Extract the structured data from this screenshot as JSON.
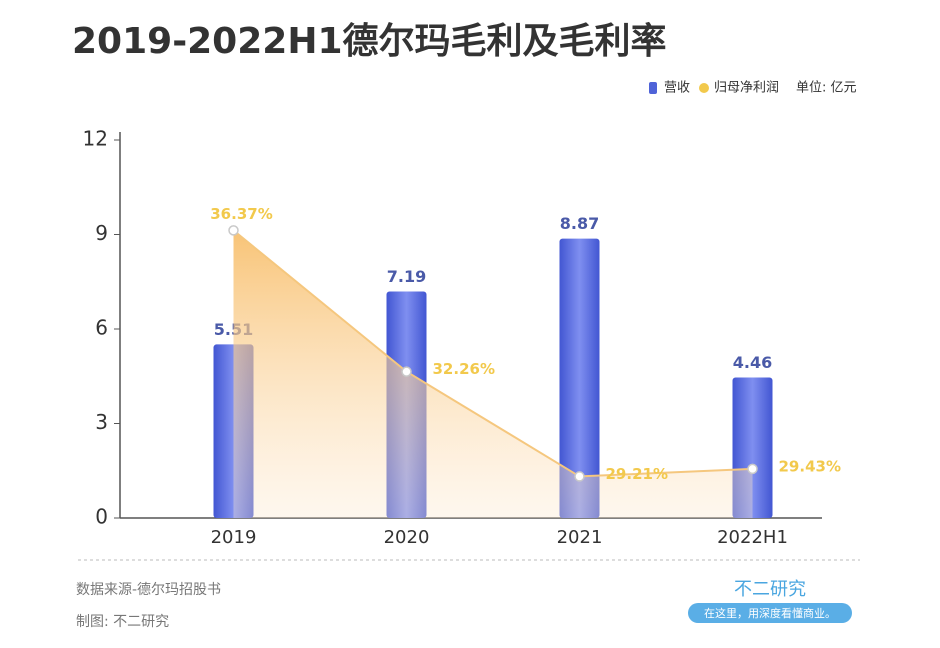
{
  "chart_data": {
    "type": "bar_line",
    "title": "2019-2022H1德尔玛毛利及毛利率",
    "unit": "单位: 亿元",
    "categories": [
      "2019",
      "2020",
      "2021",
      "2022H1"
    ],
    "series": [
      {
        "name": "营收",
        "type": "bar",
        "color": "#4f63d8",
        "values": [
          5.51,
          7.19,
          8.87,
          4.46
        ]
      },
      {
        "name": "归母净利润",
        "type": "line",
        "axis": "y2",
        "color": "#f2c94c",
        "values": [
          36.37,
          32.26,
          29.21,
          29.43
        ],
        "value_labels": [
          "36.37%",
          "32.26%",
          "29.21%",
          "29.43%"
        ]
      }
    ],
    "ylim": [
      0,
      12
    ],
    "yticks": [
      0,
      3,
      6,
      9,
      12
    ],
    "y2lim": [
      28,
      39
    ],
    "source": "数据来源-德尔玛招股书",
    "credit": "制图: 不二研究",
    "brand": "不二研究",
    "slogan": "在这里，用深度看懂商业。"
  }
}
